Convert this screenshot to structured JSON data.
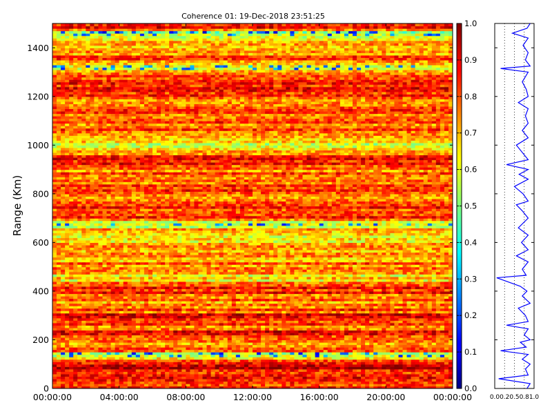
{
  "chart_data": [
    {
      "type": "heatmap",
      "title": "Coherence 01: 19-Dec-2018 23:51:25",
      "ylabel": "Range (Km)",
      "xlabel": "",
      "x_ticks": [
        "00:00:00",
        "04:00:00",
        "08:00:00",
        "12:00:00",
        "16:00:00",
        "20:00:00",
        "00:00:00"
      ],
      "xlim_hours": [
        0,
        24
      ],
      "y_ticks": [
        0,
        200,
        400,
        600,
        800,
        1000,
        1200,
        1400
      ],
      "ylim": [
        0,
        1500
      ],
      "colormap": "jet",
      "colorbar": {
        "ticks": [
          "0.0",
          "0.1",
          "0.2",
          "0.3",
          "0.4",
          "0.5",
          "0.6",
          "0.7",
          "0.8",
          "0.9",
          "1.0"
        ],
        "range": [
          0,
          1
        ]
      },
      "row_profile_km_coherence": [
        [
          0,
          0.85
        ],
        [
          30,
          0.88
        ],
        [
          100,
          0.9
        ],
        [
          145,
          0.5
        ],
        [
          160,
          0.88
        ],
        [
          190,
          0.72
        ],
        [
          230,
          0.86
        ],
        [
          260,
          0.78
        ],
        [
          300,
          0.87
        ],
        [
          330,
          0.75
        ],
        [
          380,
          0.72
        ],
        [
          400,
          0.85
        ],
        [
          420,
          0.8
        ],
        [
          450,
          0.62
        ],
        [
          470,
          0.68
        ],
        [
          500,
          0.78
        ],
        [
          540,
          0.72
        ],
        [
          580,
          0.7
        ],
        [
          620,
          0.66
        ],
        [
          650,
          0.72
        ],
        [
          680,
          0.55
        ],
        [
          700,
          0.85
        ],
        [
          740,
          0.82
        ],
        [
          780,
          0.72
        ],
        [
          800,
          0.78
        ],
        [
          840,
          0.8
        ],
        [
          880,
          0.76
        ],
        [
          900,
          0.78
        ],
        [
          940,
          0.85
        ],
        [
          980,
          0.75
        ],
        [
          1000,
          0.62
        ],
        [
          1040,
          0.82
        ],
        [
          1080,
          0.76
        ],
        [
          1120,
          0.8
        ],
        [
          1160,
          0.76
        ],
        [
          1200,
          0.8
        ],
        [
          1240,
          0.85
        ],
        [
          1280,
          0.78
        ],
        [
          1320,
          0.55
        ],
        [
          1360,
          0.8
        ],
        [
          1400,
          0.7
        ],
        [
          1440,
          0.65
        ],
        [
          1460,
          0.5
        ],
        [
          1480,
          0.82
        ],
        [
          1500,
          0.88
        ]
      ]
    },
    {
      "type": "line",
      "title": "",
      "xlabel": "",
      "ylabel": "",
      "xlim": [
        0,
        1
      ],
      "x_ticks": [
        "0.0",
        "0.2",
        "0.5",
        "0.8",
        "1.0"
      ],
      "ylim": [
        0,
        1500
      ],
      "y_ticks": [
        0,
        200,
        400,
        600,
        800,
        1000,
        1200,
        1400
      ],
      "color": "#0000ff",
      "series": [
        {
          "points_km_coherence": [
            [
              0,
              0.82
            ],
            [
              20,
              0.9
            ],
            [
              40,
              0.1
            ],
            [
              55,
              0.85
            ],
            [
              80,
              0.78
            ],
            [
              100,
              0.9
            ],
            [
              120,
              0.7
            ],
            [
              140,
              0.85
            ],
            [
              155,
              0.15
            ],
            [
              170,
              0.8
            ],
            [
              190,
              0.65
            ],
            [
              200,
              0.9
            ],
            [
              220,
              0.75
            ],
            [
              245,
              0.85
            ],
            [
              260,
              0.3
            ],
            [
              275,
              0.85
            ],
            [
              300,
              0.78
            ],
            [
              330,
              0.6
            ],
            [
              350,
              0.9
            ],
            [
              380,
              0.7
            ],
            [
              400,
              0.82
            ],
            [
              420,
              0.65
            ],
            [
              455,
              0.05
            ],
            [
              465,
              0.8
            ],
            [
              490,
              0.7
            ],
            [
              520,
              0.85
            ],
            [
              545,
              0.55
            ],
            [
              570,
              0.85
            ],
            [
              600,
              0.68
            ],
            [
              630,
              0.85
            ],
            [
              660,
              0.6
            ],
            [
              700,
              0.85
            ],
            [
              730,
              0.7
            ],
            [
              755,
              0.55
            ],
            [
              770,
              0.85
            ],
            [
              800,
              0.72
            ],
            [
              830,
              0.5
            ],
            [
              860,
              0.85
            ],
            [
              880,
              0.62
            ],
            [
              900,
              0.85
            ],
            [
              920,
              0.3
            ],
            [
              940,
              0.85
            ],
            [
              970,
              0.7
            ],
            [
              1000,
              0.55
            ],
            [
              1030,
              0.85
            ],
            [
              1060,
              0.7
            ],
            [
              1090,
              0.85
            ],
            [
              1120,
              0.78
            ],
            [
              1150,
              0.85
            ],
            [
              1175,
              0.6
            ],
            [
              1200,
              0.85
            ],
            [
              1230,
              0.8
            ],
            [
              1260,
              0.7
            ],
            [
              1300,
              0.85
            ],
            [
              1315,
              0.15
            ],
            [
              1325,
              0.9
            ],
            [
              1350,
              0.78
            ],
            [
              1380,
              0.85
            ],
            [
              1410,
              0.72
            ],
            [
              1440,
              0.85
            ],
            [
              1460,
              0.45
            ],
            [
              1480,
              0.82
            ],
            [
              1500,
              0.9
            ]
          ]
        }
      ]
    }
  ]
}
